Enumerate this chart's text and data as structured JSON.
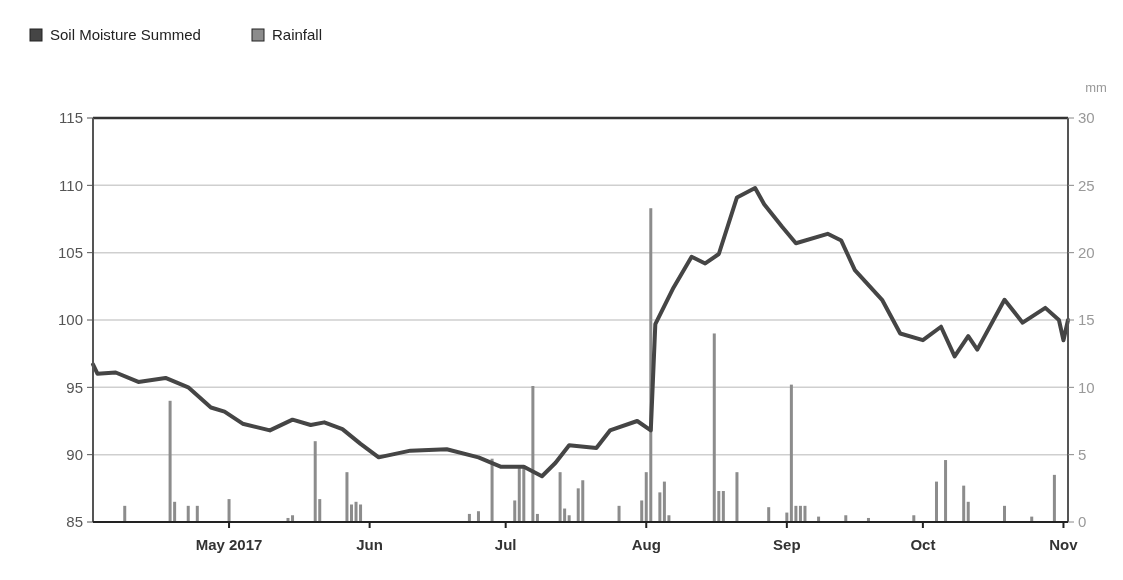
{
  "chart_data": {
    "type": "line",
    "y2label": "mm",
    "legend": "top left",
    "grid": "y",
    "xlim": [
      "2017-04-01",
      "2017-11-02"
    ],
    "xticks": [
      {
        "value": "2017-05-01",
        "label": "May 2017"
      },
      {
        "value": "2017-06-01",
        "label": "Jun"
      },
      {
        "value": "2017-07-01",
        "label": "Jul"
      },
      {
        "value": "2017-08-01",
        "label": "Aug"
      },
      {
        "value": "2017-09-01",
        "label": "Sep"
      },
      {
        "value": "2017-10-01",
        "label": "Oct"
      },
      {
        "value": "2017-11-01",
        "label": "Nov"
      }
    ],
    "ylim": [
      85,
      115
    ],
    "yticks": [
      85,
      90,
      95,
      100,
      105,
      110,
      115
    ],
    "y2lim": [
      0,
      30
    ],
    "y2ticks": [
      0,
      5,
      10,
      15,
      20,
      25,
      30
    ],
    "series": [
      {
        "name": "Soil Moisture Summed",
        "color": "#454545",
        "x": [
          "2017-04-01",
          "2017-04-02",
          "2017-04-06",
          "2017-04-11",
          "2017-04-17",
          "2017-04-22",
          "2017-04-27",
          "2017-04-30",
          "2017-05-04",
          "2017-05-10",
          "2017-05-15",
          "2017-05-19",
          "2017-05-22",
          "2017-05-26",
          "2017-05-30",
          "2017-06-03",
          "2017-06-10",
          "2017-06-18",
          "2017-06-25",
          "2017-06-30",
          "2017-07-05",
          "2017-07-09",
          "2017-07-12",
          "2017-07-15",
          "2017-07-21",
          "2017-07-24",
          "2017-07-30",
          "2017-08-02",
          "2017-08-03",
          "2017-08-07",
          "2017-08-11",
          "2017-08-14",
          "2017-08-17",
          "2017-08-21",
          "2017-08-25",
          "2017-08-27",
          "2017-08-31",
          "2017-09-03",
          "2017-09-10",
          "2017-09-13",
          "2017-09-16",
          "2017-09-22",
          "2017-09-26",
          "2017-10-01",
          "2017-10-05",
          "2017-10-08",
          "2017-10-11",
          "2017-10-13",
          "2017-10-19",
          "2017-10-23",
          "2017-10-28",
          "2017-10-31",
          "2017-11-01",
          "2017-11-02"
        ],
        "values": [
          96.7,
          96.0,
          96.1,
          95.4,
          95.7,
          95.0,
          93.5,
          93.2,
          92.3,
          91.8,
          92.6,
          92.2,
          92.4,
          91.9,
          90.8,
          89.8,
          90.3,
          90.4,
          89.8,
          89.1,
          89.1,
          88.4,
          89.4,
          90.7,
          90.5,
          91.8,
          92.5,
          91.8,
          99.7,
          102.4,
          104.7,
          104.2,
          104.9,
          109.1,
          109.8,
          108.6,
          106.9,
          105.7,
          106.4,
          105.9,
          103.7,
          101.5,
          99.0,
          98.5,
          99.5,
          97.3,
          98.8,
          97.8,
          101.5,
          99.8,
          100.9,
          100.0,
          98.5,
          100.0
        ]
      },
      {
        "name": "Rainfall",
        "type": "bar",
        "axis": "y2",
        "color": "#8c8c8c",
        "x": [
          "2017-04-08",
          "2017-04-18",
          "2017-04-19",
          "2017-04-22",
          "2017-04-24",
          "2017-05-01",
          "2017-05-14",
          "2017-05-15",
          "2017-05-20",
          "2017-05-21",
          "2017-05-27",
          "2017-05-28",
          "2017-05-29",
          "2017-05-30",
          "2017-06-23",
          "2017-06-25",
          "2017-06-28",
          "2017-07-03",
          "2017-07-04",
          "2017-07-05",
          "2017-07-07",
          "2017-07-08",
          "2017-07-13",
          "2017-07-14",
          "2017-07-15",
          "2017-07-17",
          "2017-07-18",
          "2017-07-26",
          "2017-07-31",
          "2017-08-01",
          "2017-08-02",
          "2017-08-04",
          "2017-08-05",
          "2017-08-06",
          "2017-08-16",
          "2017-08-17",
          "2017-08-18",
          "2017-08-21",
          "2017-08-28",
          "2017-09-01",
          "2017-09-02",
          "2017-09-03",
          "2017-09-04",
          "2017-09-05",
          "2017-09-08",
          "2017-09-14",
          "2017-09-19",
          "2017-09-29",
          "2017-10-04",
          "2017-10-06",
          "2017-10-10",
          "2017-10-11",
          "2017-10-19",
          "2017-10-25",
          "2017-10-30"
        ],
        "values": [
          1.2,
          9.0,
          1.5,
          1.2,
          1.2,
          1.7,
          0.3,
          0.5,
          6.0,
          1.7,
          3.7,
          1.3,
          1.5,
          1.3,
          0.6,
          0.8,
          4.7,
          1.6,
          4.0,
          4.2,
          10.1,
          0.6,
          3.7,
          1.0,
          0.5,
          2.5,
          3.1,
          1.2,
          1.6,
          3.7,
          23.3,
          2.2,
          3.0,
          0.5,
          14.0,
          2.3,
          2.3,
          3.7,
          1.1,
          0.7,
          10.2,
          1.2,
          1.2,
          1.2,
          0.4,
          0.5,
          0.3,
          0.5,
          3.0,
          4.6,
          2.7,
          1.5,
          1.2,
          0.4,
          3.5
        ]
      }
    ]
  }
}
